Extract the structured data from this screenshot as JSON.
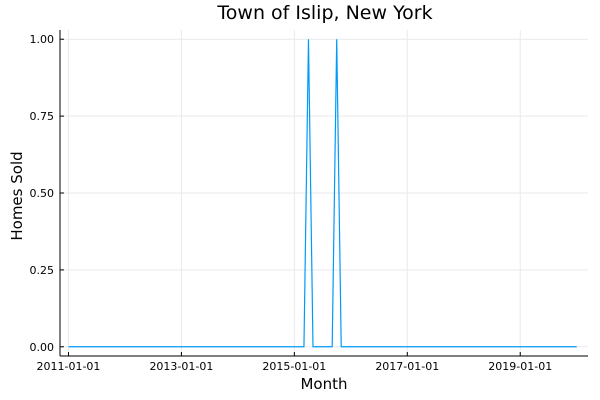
{
  "chart_data": {
    "type": "line",
    "title": "Town of Islip, New York",
    "xlabel": "Month",
    "ylabel": "Homes Sold",
    "x_tick_labels": [
      "2011-01-01",
      "2013-01-01",
      "2015-01-01",
      "2017-01-01",
      "2019-01-01"
    ],
    "x_tick_years": [
      2011,
      2013,
      2015,
      2017,
      2019
    ],
    "y_tick_labels": [
      "0.00",
      "0.25",
      "0.50",
      "0.75",
      "1.00"
    ],
    "y_tick_values": [
      0,
      0.25,
      0.5,
      0.75,
      1.0
    ],
    "xlim_years": [
      2010.85,
      2020.2
    ],
    "ylim": [
      -0.03,
      1.03
    ],
    "grid": true,
    "series": [
      {
        "name": "Homes Sold",
        "color": "#009af9",
        "points": [
          {
            "x": 2011.0,
            "y": 0
          },
          {
            "x": 2015.17,
            "y": 0
          },
          {
            "x": 2015.25,
            "y": 1
          },
          {
            "x": 2015.33,
            "y": 0
          },
          {
            "x": 2015.67,
            "y": 0
          },
          {
            "x": 2015.75,
            "y": 1
          },
          {
            "x": 2015.83,
            "y": 0
          },
          {
            "x": 2020.0,
            "y": 0
          }
        ]
      }
    ]
  }
}
